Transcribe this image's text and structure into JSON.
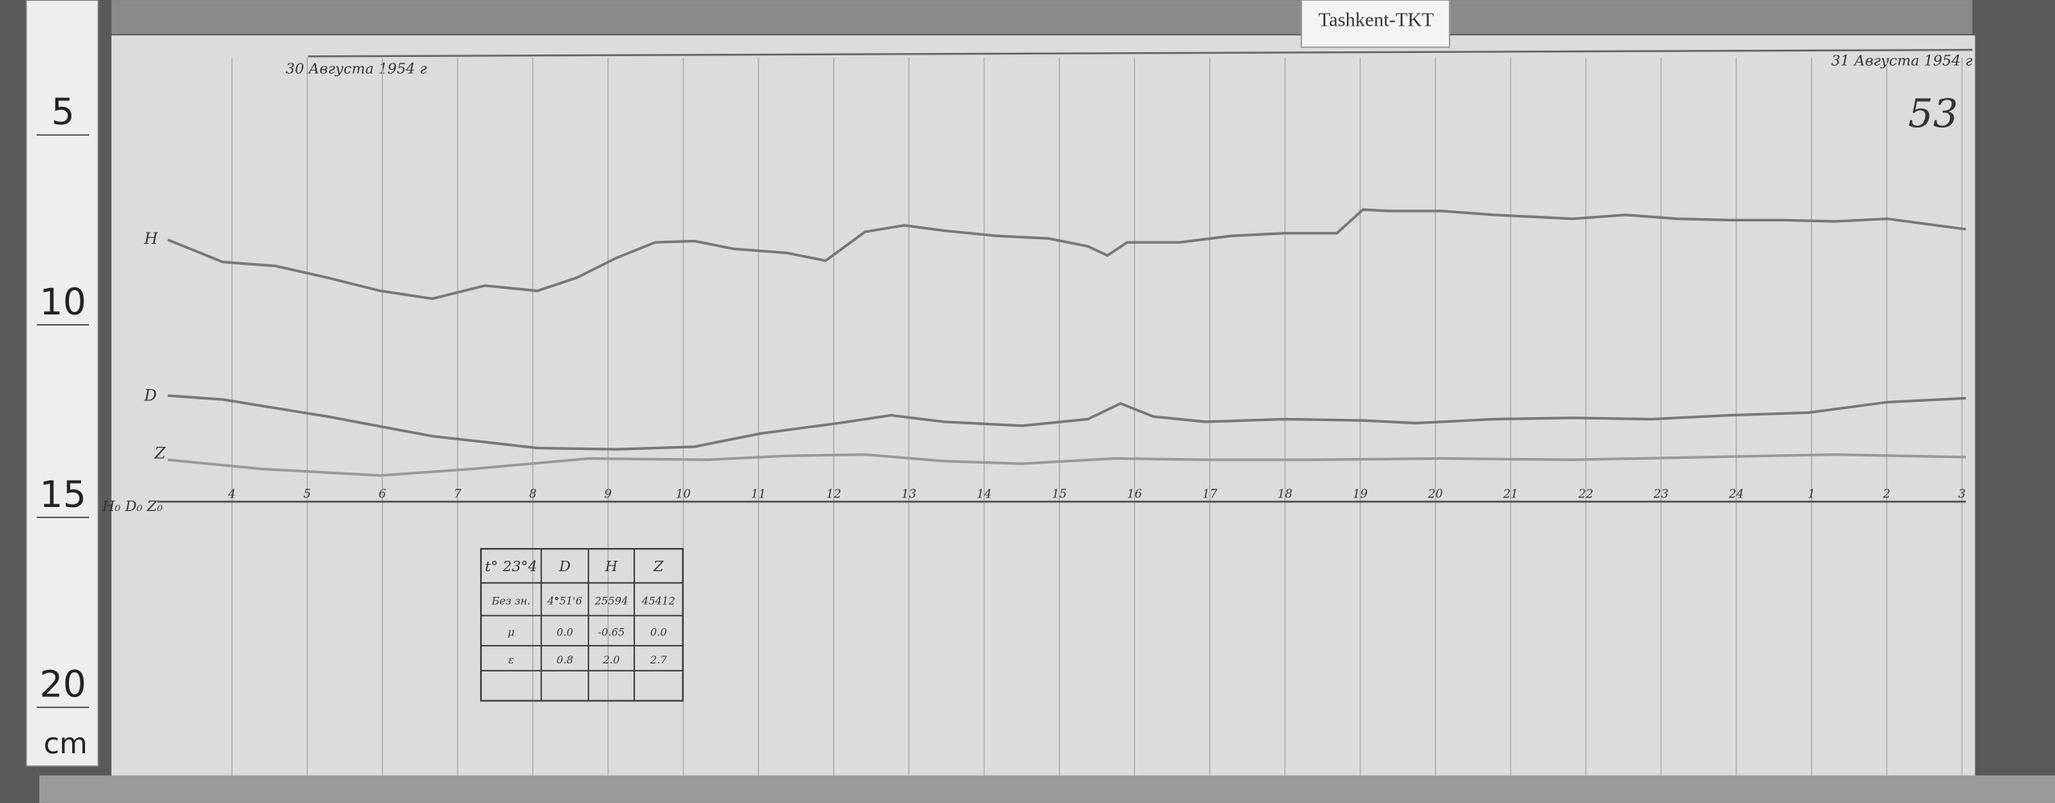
{
  "ruler": {
    "marks": [
      "5",
      "10",
      "15",
      "20"
    ],
    "unit": "cm"
  },
  "label": "Tashkent-TKT",
  "sheet_number": "53",
  "date_start": "30 Августа 1954 г",
  "date_end": "31 Августа 1954 г",
  "traces": {
    "H": "H",
    "D": "D",
    "Z": "Z",
    "baselines": "H₀ D₀ Z₀"
  },
  "hours": [
    "4",
    "5",
    "6",
    "7",
    "8",
    "9",
    "10",
    "11",
    "12",
    "13",
    "14",
    "15",
    "16",
    "17",
    "18",
    "19",
    "20",
    "21",
    "22",
    "23",
    "24",
    "1",
    "2",
    "3"
  ],
  "table": {
    "rows": [
      [
        "t° 23°4",
        "D",
        "H",
        "Z"
      ],
      [
        "Без зн.",
        "4°51'6",
        "25594",
        "45412"
      ],
      [
        "μ",
        "0.0",
        "-0.65",
        "0.0"
      ],
      [
        "ε",
        "0.8",
        "2.0",
        "2.7"
      ]
    ]
  }
}
